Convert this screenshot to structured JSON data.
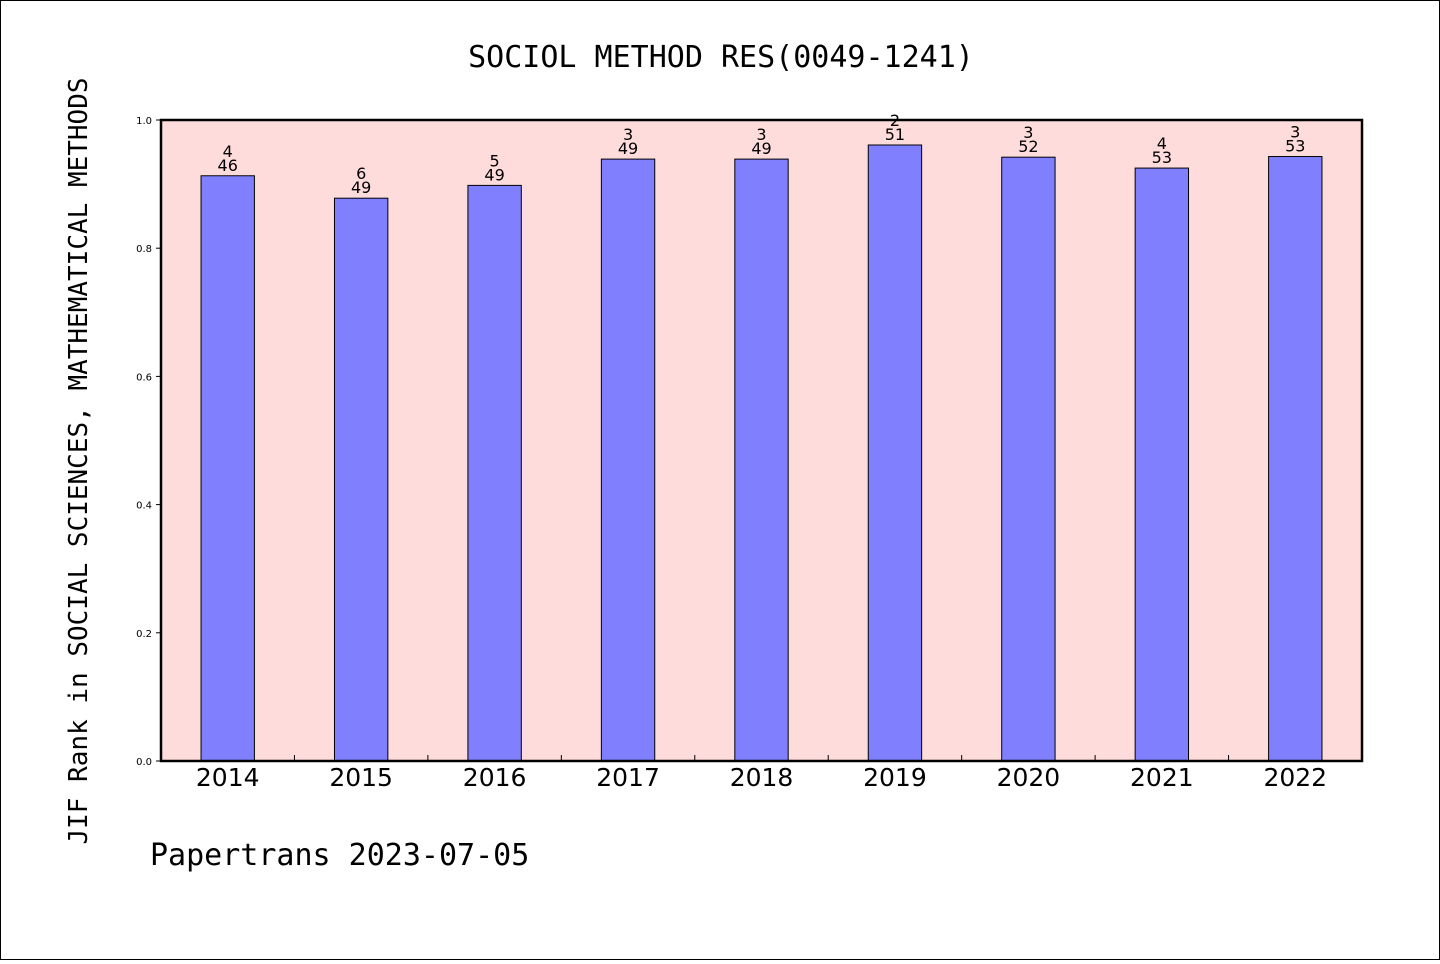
{
  "chart_data": {
    "type": "bar",
    "title": "SOCIOL METHOD RES(0049-1241)",
    "ylabel": "JIF Rank in SOCIAL SCIENCES, MATHEMATICAL METHODS",
    "xlabel": "",
    "categories": [
      "2014",
      "2015",
      "2016",
      "2017",
      "2018",
      "2019",
      "2020",
      "2021",
      "2022"
    ],
    "values": [
      0.913,
      0.878,
      0.898,
      0.939,
      0.939,
      0.961,
      0.942,
      0.925,
      0.943
    ],
    "rank": [
      "4",
      "6",
      "5",
      "3",
      "3",
      "2",
      "3",
      "4",
      "3"
    ],
    "total": [
      "46",
      "49",
      "49",
      "49",
      "49",
      "51",
      "52",
      "53",
      "53"
    ],
    "ylim": [
      0,
      1.0
    ],
    "yticks": [
      "0.0",
      "0.2",
      "0.4",
      "0.6",
      "0.8",
      "1.0"
    ],
    "grid": false,
    "bar_color": "#8080ff",
    "plot_background": "#ffdcdc"
  },
  "footer": {
    "text": "Papertrans 2023-07-05"
  }
}
